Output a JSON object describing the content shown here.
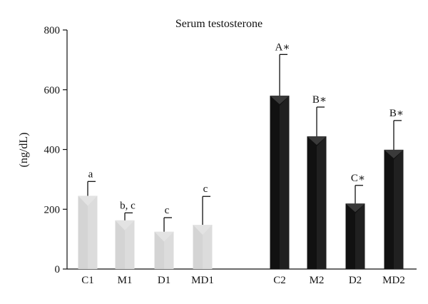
{
  "chart_data": {
    "type": "bar",
    "title": "Serum testosterone",
    "xlabel": "",
    "ylabel": "(ng/dL)",
    "ylim": [
      0,
      800
    ],
    "yticks": [
      "0",
      "200",
      "400",
      "600",
      "800"
    ],
    "grid": false,
    "categories": [
      "C1",
      "M1",
      "D1",
      "MD1",
      "C2",
      "M2",
      "D2",
      "MD2"
    ],
    "values": [
      245,
      163,
      125,
      148,
      580,
      444,
      219,
      399
    ],
    "errors": [
      48,
      25,
      47,
      95,
      138,
      98,
      61,
      98
    ],
    "annotations": [
      "a",
      "b, c",
      "c",
      "c",
      "A∗",
      "B∗",
      "C∗",
      "B∗"
    ],
    "groups": [
      {
        "categories": [
          "C1",
          "M1",
          "D1",
          "MD1"
        ],
        "color": "#d4d4d4",
        "shade": "#e2e2e2"
      },
      {
        "categories": [
          "C2",
          "M2",
          "D2",
          "MD2"
        ],
        "color": "#111111",
        "shade": "#2e2e2e"
      }
    ]
  }
}
